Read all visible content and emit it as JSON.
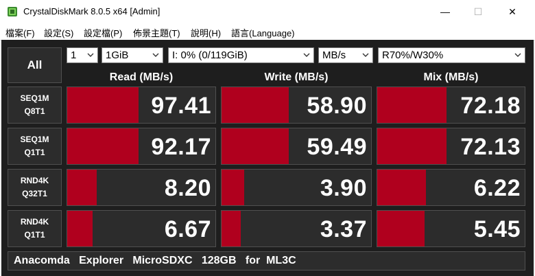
{
  "window": {
    "title": "CrystalDiskMark 8.0.5 x64 [Admin]"
  },
  "window_controls": {
    "minimize": "—",
    "maximize": "☐",
    "close": "✕"
  },
  "menu": [
    "檔案(F)",
    "設定(S)",
    "設定檔(P)",
    "佈景主題(T)",
    "說明(H)",
    "語言(Language)"
  ],
  "controls": {
    "all_label": "All",
    "count": "1",
    "size": "1GiB",
    "drive": "I: 0% (0/119GiB)",
    "unit": "MB/s",
    "mix": "R70%/W30%"
  },
  "columns": {
    "read": "Read (MB/s)",
    "write": "Write (MB/s)",
    "mix": "Mix (MB/s)"
  },
  "rows": [
    {
      "line1": "SEQ1M",
      "line2": "Q8T1",
      "read": "97.41",
      "write": "58.90",
      "mix": "72.18",
      "read_fill": 0.48,
      "write_fill": 0.45,
      "mix_fill": 0.47
    },
    {
      "line1": "SEQ1M",
      "line2": "Q1T1",
      "read": "92.17",
      "write": "59.49",
      "mix": "72.13",
      "read_fill": 0.48,
      "write_fill": 0.45,
      "mix_fill": 0.47
    },
    {
      "line1": "RND4K",
      "line2": "Q32T1",
      "read": "8.20",
      "write": "3.90",
      "mix": "6.22",
      "read_fill": 0.2,
      "write_fill": 0.15,
      "mix_fill": 0.33
    },
    {
      "line1": "RND4K",
      "line2": "Q1T1",
      "read": "6.67",
      "write": "3.37",
      "mix": "5.45",
      "read_fill": 0.17,
      "write_fill": 0.13,
      "mix_fill": 0.32
    }
  ],
  "comment": "Anacomda   Explorer   MicroSDXC   128GB   for  ML3C",
  "colors": {
    "bar": "#b0001e",
    "panel": "#1e1e1e",
    "cell": "#2c2c2c"
  }
}
